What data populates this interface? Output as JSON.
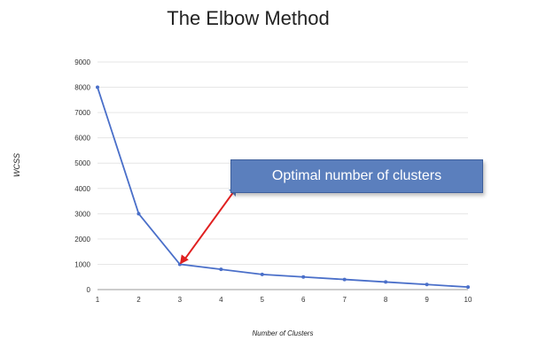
{
  "chart_data": {
    "type": "line",
    "title": "The Elbow Method",
    "xlabel": "Number of Clusters",
    "ylabel": "WCSS",
    "x": [
      1,
      2,
      3,
      4,
      5,
      6,
      7,
      8,
      9,
      10
    ],
    "series": [
      {
        "values": [
          8000,
          3000,
          1000,
          800,
          600,
          500,
          400,
          300,
          200,
          100
        ]
      }
    ],
    "ylim": [
      0,
      9000
    ],
    "yticks": [
      0,
      1000,
      2000,
      3000,
      4000,
      5000,
      6000,
      7000,
      8000,
      9000
    ],
    "xticks": [
      1,
      2,
      3,
      4,
      5,
      6,
      7,
      8,
      9,
      10
    ],
    "grid": true,
    "annotation": {
      "text": "Optimal number of clusters",
      "x": 3,
      "y": 1000
    },
    "colors": {
      "line": "#4a6fc9",
      "arrow": "#e02020",
      "callout": "#5b7fbd"
    }
  }
}
